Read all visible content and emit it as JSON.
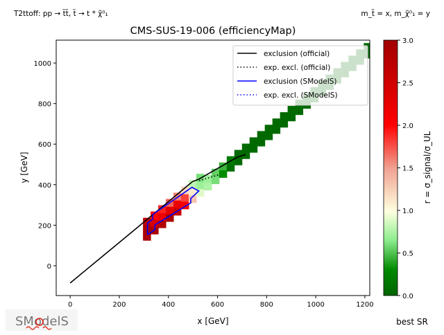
{
  "header": {
    "left": "T2ttoff: pp → t̃t̃, t̃ → t * χ̃⁰₁",
    "right": "m_t̃ = x, m_χ̃⁰₁ = y"
  },
  "logo": "SModelS",
  "chart_data": {
    "type": "heatmap",
    "title": "CMS-SUS-19-006 (efficiencyMap)",
    "xlabel": "x [GeV]",
    "ylabel": "y [GeV]",
    "xlim": [
      -57,
      1220
    ],
    "ylim": [
      -147,
      1113
    ],
    "xticks": [
      0,
      200,
      400,
      600,
      800,
      1000,
      1200
    ],
    "yticks": [
      0,
      200,
      400,
      600,
      800,
      1000
    ],
    "colorbar": {
      "label": "r = σ_signal/σ_UL",
      "range": [
        0,
        3
      ],
      "ticks": [
        "0.0",
        "0.5",
        "1.0",
        "1.5",
        "2.0",
        "2.5",
        "3.0"
      ],
      "colors": [
        "#006400",
        "#008a00",
        "#90ee90",
        "#ffffe0",
        "#f0a090",
        "#ff0000",
        "#a00000"
      ],
      "extra_label": "best SR"
    },
    "cell_size": [
      31,
      37
    ],
    "cells": [
      [
        312,
        144,
        2.9
      ],
      [
        312,
        181,
        2.9
      ],
      [
        312,
        218,
        2.7
      ],
      [
        343,
        175,
        2.9
      ],
      [
        343,
        212,
        2.4
      ],
      [
        343,
        249,
        2.0
      ],
      [
        374,
        206,
        2.8
      ],
      [
        374,
        243,
        2.2
      ],
      [
        374,
        280,
        1.9
      ],
      [
        405,
        237,
        2.9
      ],
      [
        405,
        274,
        2.3
      ],
      [
        405,
        311,
        1.7
      ],
      [
        436,
        268,
        2.6
      ],
      [
        436,
        305,
        2.2
      ],
      [
        436,
        342,
        1.6
      ],
      [
        467,
        299,
        2.1
      ],
      [
        467,
        336,
        1.8
      ],
      [
        467,
        373,
        1.2
      ],
      [
        498,
        330,
        1.3
      ],
      [
        498,
        367,
        1.1
      ],
      [
        498,
        404,
        0.8
      ],
      [
        529,
        361,
        0.9
      ],
      [
        529,
        398,
        0.7
      ],
      [
        529,
        435,
        0.6
      ],
      [
        560,
        392,
        0.75
      ],
      [
        560,
        429,
        0.7
      ],
      [
        591,
        423,
        0.6
      ],
      [
        591,
        460,
        0.55
      ],
      [
        622,
        454,
        0.3
      ],
      [
        622,
        491,
        0.45
      ],
      [
        653,
        485,
        0.1
      ],
      [
        653,
        522,
        0.2
      ],
      [
        684,
        516,
        0.05
      ],
      [
        684,
        553,
        0.05
      ],
      [
        715,
        547,
        0.05
      ],
      [
        715,
        584,
        0.05
      ],
      [
        746,
        578,
        0.05
      ],
      [
        746,
        615,
        0.05
      ],
      [
        777,
        609,
        0.05
      ],
      [
        777,
        646,
        0.05
      ],
      [
        808,
        640,
        0.05
      ],
      [
        808,
        677,
        0.05
      ],
      [
        839,
        671,
        0.05
      ],
      [
        839,
        708,
        0.05
      ],
      [
        870,
        702,
        0.05
      ],
      [
        870,
        739,
        0.05
      ],
      [
        901,
        733,
        0.05
      ],
      [
        901,
        770,
        0.05
      ],
      [
        932,
        764,
        0.05
      ],
      [
        932,
        801,
        0.05
      ],
      [
        963,
        795,
        0.05
      ],
      [
        963,
        832,
        0.05
      ],
      [
        994,
        826,
        0.05
      ],
      [
        994,
        863,
        0.05
      ],
      [
        1025,
        857,
        0.05
      ],
      [
        1025,
        894,
        0.05
      ],
      [
        1056,
        888,
        0.05
      ],
      [
        1056,
        925,
        0.05
      ],
      [
        1087,
        919,
        0.05
      ],
      [
        1087,
        956,
        0.05
      ],
      [
        1118,
        950,
        0.05
      ],
      [
        1118,
        987,
        0.05
      ],
      [
        1149,
        981,
        0.05
      ],
      [
        1149,
        1018,
        0.05
      ],
      [
        1180,
        1012,
        0.05
      ],
      [
        1180,
        1049,
        0.05
      ],
      [
        1211,
        1043,
        0.05
      ],
      [
        1211,
        1080,
        0.05
      ]
    ],
    "series": [
      {
        "name": "exclusion (official)",
        "color": "#000000",
        "style": "solid",
        "points": [
          [
            0,
            -85
          ],
          [
            250,
            165
          ],
          [
            498,
            415
          ],
          [
            525,
            428
          ],
          [
            680,
            535
          ],
          [
            714,
            549
          ]
        ]
      },
      {
        "name": "exp. excl. (official)",
        "color": "#000000",
        "style": "dotted",
        "points": [
          [
            525,
            420
          ],
          [
            604,
            448
          ]
        ]
      },
      {
        "name": "exclusion (SModelS)",
        "color": "#0000ff",
        "style": "solid",
        "points": [
          [
            315,
            153
          ],
          [
            345,
            178
          ],
          [
            345,
            201
          ],
          [
            491,
            310
          ],
          [
            491,
            332
          ],
          [
            524,
            369
          ],
          [
            496,
            387
          ],
          [
            336,
            253
          ],
          [
            336,
            230
          ],
          [
            315,
            210
          ],
          [
            315,
            153
          ]
        ]
      },
      {
        "name": "exp. excl. (SModelS)",
        "color": "#0000ff",
        "style": "dotted",
        "points": []
      }
    ],
    "legend_position": "top-right"
  }
}
